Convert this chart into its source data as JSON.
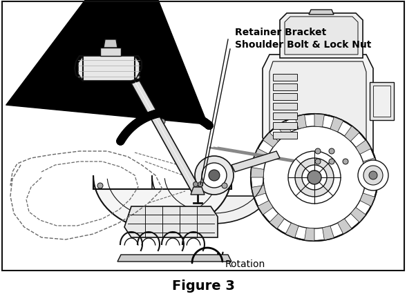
{
  "title": "Figure 3",
  "label1": "Retainer Bracket",
  "label2": "Shoulder Bolt & Lock Nut",
  "label3": "Rotation",
  "bg_color": "#ffffff",
  "border_color": "#000000",
  "fig_width": 5.89,
  "fig_height": 4.27,
  "dpi": 100,
  "title_fontsize": 14,
  "title_fontweight": "bold",
  "label_fontsize": 10,
  "rotation_fontsize": 10,
  "lc": "#111111",
  "lc_mid": "#444444",
  "dashed_color": "#666666"
}
